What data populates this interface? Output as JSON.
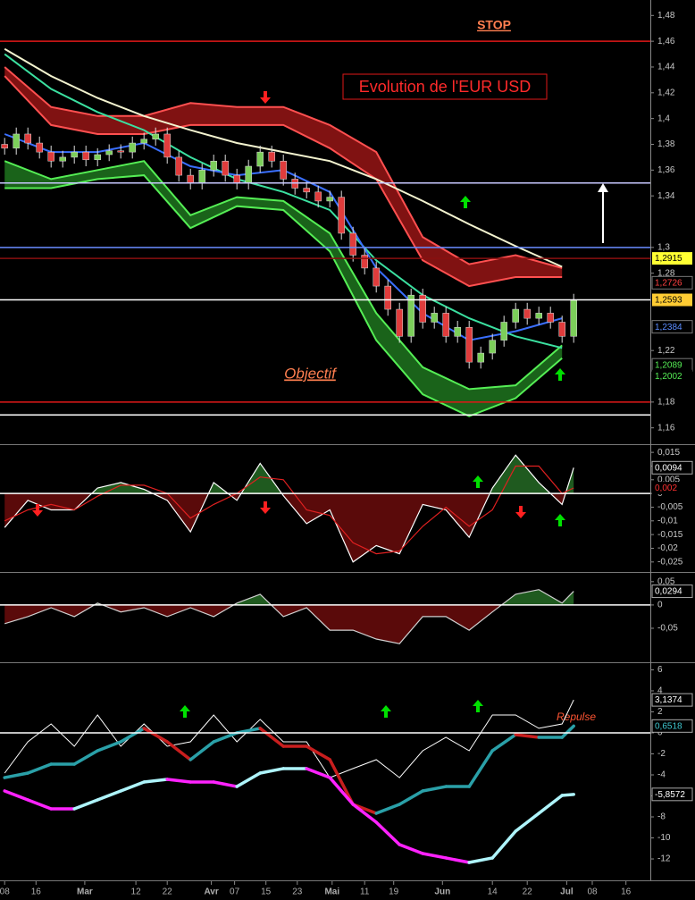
{
  "chart_data": [
    {
      "type": "candlestick",
      "title": "Evolution de l'EUR USD",
      "annotations": {
        "stop": "STOP",
        "objectif": "Objectif"
      },
      "xlim": [
        -0.4,
        55.6
      ],
      "ylim": [
        1.148,
        1.492
      ],
      "yticks": [
        {
          "value": 1.48,
          "label": "1,48"
        },
        {
          "value": 1.46,
          "label": "1,46"
        },
        {
          "value": 1.44,
          "label": "1,44"
        },
        {
          "value": 1.42,
          "label": "1,42"
        },
        {
          "value": 1.4,
          "label": "1,4"
        },
        {
          "value": 1.38,
          "label": "1,38"
        },
        {
          "value": 1.36,
          "label": "1,36"
        },
        {
          "value": 1.34,
          "label": "1,34"
        },
        {
          "value": 1.3,
          "label": "1,3"
        },
        {
          "value": 1.28,
          "label": "1,28"
        },
        {
          "value": 1.22,
          "label": "1,22"
        },
        {
          "value": 1.18,
          "label": "1,18"
        },
        {
          "value": 1.16,
          "label": "1,16"
        }
      ],
      "up_color": "#7ccf5a",
      "down_color": "#e03c3c",
      "wick_color": "#dddddd",
      "x": [
        0,
        1,
        2,
        3,
        4,
        5,
        6,
        7,
        8,
        9,
        10,
        11,
        12,
        13,
        14,
        15,
        16,
        17,
        18,
        19,
        20,
        21,
        22,
        23,
        24,
        25,
        26,
        27,
        28,
        29,
        30,
        31,
        32,
        33,
        34,
        35,
        36,
        37,
        38,
        39,
        40,
        41,
        42,
        43,
        44,
        45,
        46,
        47,
        48,
        49
      ],
      "open": [
        1.38,
        1.377,
        1.388,
        1.381,
        1.374,
        1.367,
        1.37,
        1.374,
        1.368,
        1.372,
        1.375,
        1.374,
        1.381,
        1.384,
        1.388,
        1.37,
        1.356,
        1.35,
        1.36,
        1.367,
        1.356,
        1.35,
        1.363,
        1.374,
        1.367,
        1.353,
        1.346,
        1.343,
        1.336,
        1.339,
        1.311,
        1.294,
        1.284,
        1.27,
        1.252,
        1.231,
        1.263,
        1.242,
        1.249,
        1.231,
        1.238,
        1.211,
        1.218,
        1.228,
        1.242,
        1.252,
        1.245,
        1.249,
        1.242,
        1.231
      ],
      "high": [
        1.385,
        1.393,
        1.393,
        1.386,
        1.379,
        1.375,
        1.379,
        1.379,
        1.377,
        1.38,
        1.38,
        1.386,
        1.389,
        1.393,
        1.393,
        1.375,
        1.361,
        1.365,
        1.372,
        1.372,
        1.361,
        1.368,
        1.379,
        1.379,
        1.372,
        1.358,
        1.351,
        1.348,
        1.344,
        1.344,
        1.316,
        1.299,
        1.289,
        1.275,
        1.257,
        1.268,
        1.268,
        1.254,
        1.254,
        1.243,
        1.243,
        1.223,
        1.233,
        1.247,
        1.257,
        1.257,
        1.254,
        1.254,
        1.247,
        1.264
      ],
      "low": [
        1.372,
        1.372,
        1.376,
        1.369,
        1.362,
        1.362,
        1.365,
        1.363,
        1.363,
        1.367,
        1.369,
        1.369,
        1.376,
        1.379,
        1.365,
        1.351,
        1.345,
        1.345,
        1.355,
        1.351,
        1.345,
        1.345,
        1.358,
        1.362,
        1.348,
        1.341,
        1.338,
        1.331,
        1.331,
        1.306,
        1.289,
        1.279,
        1.265,
        1.247,
        1.226,
        1.226,
        1.237,
        1.237,
        1.226,
        1.226,
        1.206,
        1.206,
        1.213,
        1.223,
        1.237,
        1.24,
        1.24,
        1.237,
        1.226,
        1.226
      ],
      "close": [
        1.377,
        1.388,
        1.381,
        1.374,
        1.367,
        1.37,
        1.374,
        1.368,
        1.372,
        1.375,
        1.374,
        1.381,
        1.384,
        1.388,
        1.37,
        1.356,
        1.35,
        1.36,
        1.367,
        1.356,
        1.35,
        1.363,
        1.374,
        1.367,
        1.353,
        1.346,
        1.343,
        1.336,
        1.339,
        1.311,
        1.294,
        1.284,
        1.27,
        1.252,
        1.231,
        1.263,
        1.242,
        1.249,
        1.231,
        1.238,
        1.211,
        1.218,
        1.228,
        1.242,
        1.252,
        1.245,
        1.249,
        1.242,
        1.231,
        1.259
      ],
      "bands": [
        {
          "color": "#8e1414",
          "edge_color": "#ff5050",
          "x": [
            0,
            4,
            8,
            12,
            16,
            20,
            24,
            28,
            32,
            36,
            40,
            44,
            48
          ],
          "upper": [
            1.44,
            1.409,
            1.402,
            1.402,
            1.412,
            1.409,
            1.409,
            1.395,
            1.374,
            1.308,
            1.287,
            1.294,
            1.284
          ],
          "lower": [
            1.433,
            1.395,
            1.388,
            1.388,
            1.395,
            1.395,
            1.395,
            1.377,
            1.353,
            1.29,
            1.27,
            1.277,
            1.277
          ]
        },
        {
          "color": "#1d6e1d",
          "edge_color": "#55ee55",
          "x": [
            0,
            4,
            8,
            12,
            16,
            20,
            24,
            28,
            32,
            36,
            40,
            44,
            48
          ],
          "upper": [
            1.367,
            1.353,
            1.36,
            1.367,
            1.325,
            1.339,
            1.336,
            1.311,
            1.249,
            1.207,
            1.19,
            1.193,
            1.224
          ],
          "lower": [
            1.346,
            1.346,
            1.353,
            1.356,
            1.315,
            1.332,
            1.329,
            1.297,
            1.228,
            1.186,
            1.169,
            1.183,
            1.214
          ]
        }
      ],
      "lines": [
        {
          "color": "#f3f3cf",
          "x": [
            0,
            4,
            8,
            12,
            16,
            20,
            24,
            28,
            32,
            36,
            40,
            44,
            48
          ],
          "values": [
            1.454,
            1.433,
            1.416,
            1.402,
            1.391,
            1.381,
            1.374,
            1.367,
            1.353,
            1.336,
            1.318,
            1.301,
            1.285
          ]
        },
        {
          "color": "#3be0a0",
          "x": [
            0,
            4,
            8,
            12,
            16,
            20,
            24,
            28,
            32,
            36,
            40,
            44,
            48
          ],
          "values": [
            1.45,
            1.423,
            1.405,
            1.391,
            1.37,
            1.353,
            1.343,
            1.329,
            1.29,
            1.263,
            1.245,
            1.231,
            1.222
          ]
        },
        {
          "color": "#3a6fff",
          "x": [
            0,
            4,
            8,
            12,
            16,
            20,
            24,
            28,
            32,
            36,
            40,
            44,
            48
          ],
          "values": [
            1.388,
            1.374,
            1.374,
            1.381,
            1.363,
            1.356,
            1.36,
            1.343,
            1.284,
            1.249,
            1.228,
            1.235,
            1.245
          ]
        }
      ],
      "levels": [
        {
          "value": 1.46,
          "color": "#e01818"
        },
        {
          "value": 1.35,
          "color": "#c8c8ff"
        },
        {
          "value": 1.3,
          "color": "#6a8cff"
        },
        {
          "value": 1.2915,
          "color": "#8a1010"
        },
        {
          "value": 1.2593,
          "color": "#ffffff"
        },
        {
          "value": 1.18,
          "color": "#e01818"
        },
        {
          "value": 1.17,
          "color": "#ffffff"
        }
      ],
      "price_labels": [
        {
          "value": 1.2915,
          "label": "1,2915",
          "color": "#000000",
          "background": "#ffff33"
        },
        {
          "value": 1.2726,
          "label": "1,2726",
          "color": "#ff4040",
          "border": "#777777"
        },
        {
          "value": 1.2593,
          "label": "1,2593",
          "color": "#000000",
          "background": "#ffcc33"
        },
        {
          "value": 1.2384,
          "label": "1,2384",
          "color": "#5b8cff",
          "border": "#777777"
        },
        {
          "value": 1.2089,
          "label": "1,2089",
          "color": "#55ee55",
          "border": "#777777"
        },
        {
          "value": 1.2002,
          "label": "1,2002",
          "color": "#55ee55"
        }
      ]
    },
    {
      "type": "area",
      "xlim": [
        -0.4,
        55.6
      ],
      "ylim": [
        -0.028,
        0.017
      ],
      "yticks": [
        {
          "value": 0.015,
          "label": "0,015"
        },
        {
          "value": 0.01,
          "label": "0,01"
        },
        {
          "value": 0.005,
          "label": "0,005"
        },
        0,
        {
          "value": -0.005,
          "label": "-0,005"
        },
        {
          "value": -0.01,
          "label": "-0,01"
        },
        {
          "value": -0.015,
          "label": "-0,015"
        },
        {
          "value": -0.02,
          "label": "-0,02"
        },
        {
          "value": -0.025,
          "label": "-0,025"
        }
      ],
      "x": [
        0,
        2,
        4,
        6,
        8,
        10,
        12,
        14,
        16,
        18,
        20,
        22,
        24,
        26,
        28,
        30,
        32,
        34,
        36,
        38,
        40,
        42,
        44,
        46,
        48,
        49
      ],
      "series": [
        {
          "color": "#ffffff",
          "fill_up": "#1f5a1f",
          "fill_down": "#5a0a0a",
          "values": [
            -0.0124,
            -0.0025,
            -0.006,
            -0.006,
            0.002,
            0.004,
            0.0015,
            -0.0025,
            -0.014,
            0.004,
            -0.0025,
            0.011,
            -0.0008,
            -0.011,
            -0.006,
            -0.025,
            -0.019,
            -0.022,
            -0.004,
            -0.006,
            -0.016,
            0.002,
            0.014,
            0.004,
            -0.004,
            0.0094
          ]
        },
        {
          "color": "#e02020",
          "values": [
            -0.01,
            -0.006,
            -0.004,
            -0.006,
            -0.001,
            0.003,
            0.003,
            0.0,
            -0.009,
            -0.004,
            0.0,
            0.006,
            0.005,
            -0.006,
            -0.008,
            -0.018,
            -0.022,
            -0.021,
            -0.012,
            -0.005,
            -0.012,
            -0.006,
            0.01,
            0.01,
            0.0,
            0.002
          ]
        }
      ],
      "levels": [
        {
          "value": 0,
          "color": "#ffffff"
        }
      ],
      "price_labels": [
        {
          "value": 0.0094,
          "label": "0,0094",
          "color": "#ffffff",
          "border": "#aaaaaa"
        },
        {
          "value": 0.002,
          "label": "0,002",
          "color": "#ff3030"
        }
      ]
    },
    {
      "type": "area",
      "xlim": [
        -0.4,
        55.6
      ],
      "ylim": [
        -0.121,
        0.065
      ],
      "yticks": [
        {
          "value": 0.05,
          "label": "0,05"
        },
        0,
        {
          "value": -0.05,
          "label": "-0,05"
        }
      ],
      "x": [
        0,
        2,
        4,
        6,
        8,
        10,
        12,
        14,
        16,
        18,
        20,
        22,
        24,
        26,
        28,
        30,
        32,
        34,
        36,
        38,
        40,
        42,
        44,
        46,
        48,
        49
      ],
      "series": [
        {
          "color": "#d0d0d0",
          "fill_up": "#1f5a1f",
          "fill_down": "#5a0a0a",
          "values": [
            -0.04,
            -0.025,
            -0.006,
            -0.025,
            0.004,
            -0.015,
            -0.006,
            -0.025,
            -0.006,
            -0.025,
            0.004,
            0.023,
            -0.025,
            -0.006,
            -0.054,
            -0.054,
            -0.073,
            -0.083,
            -0.025,
            -0.025,
            -0.054,
            -0.015,
            0.023,
            0.033,
            0.004,
            0.0294
          ]
        }
      ],
      "levels": [
        {
          "value": 0,
          "color": "#ffffff"
        }
      ],
      "price_labels": [
        {
          "value": 0.0294,
          "label": "0,0294",
          "color": "#ffffff",
          "border": "#aaaaaa"
        }
      ]
    },
    {
      "type": "line",
      "annotation": "Repulse",
      "xlim": [
        -0.4,
        55.6
      ],
      "ylim": [
        -14.04,
        6.55
      ],
      "yticks": [
        6,
        4,
        2,
        0,
        -2,
        -4,
        -6,
        -8,
        -10,
        -12
      ],
      "x": [
        0,
        2,
        4,
        6,
        8,
        10,
        12,
        14,
        16,
        18,
        20,
        22,
        24,
        26,
        28,
        30,
        32,
        34,
        36,
        38,
        40,
        42,
        44,
        46,
        48,
        49
      ],
      "series": [
        {
          "color": "#ffffff",
          "values": [
            -3.83,
            -0.85,
            0.85,
            -1.28,
            1.7,
            -1.28,
            0.85,
            -1.28,
            -0.85,
            1.7,
            -0.85,
            1.28,
            -0.85,
            -0.85,
            -4.26,
            -3.4,
            -2.55,
            -4.26,
            -1.7,
            -0.43,
            -1.7,
            1.7,
            1.7,
            0.43,
            0.85,
            3.1374
          ]
        },
        {
          "values": [
            -4.26,
            -3.83,
            -2.98,
            -2.98,
            -1.7,
            -0.85,
            0.43,
            -0.85,
            -2.55,
            -0.85,
            0,
            0.43,
            -1.28,
            -1.28,
            -2.55,
            -6.81,
            -7.66,
            -6.81,
            -5.53,
            -5.11,
            -5.11,
            -1.7,
            -0.17,
            -0.43,
            -0.43,
            0.6518
          ],
          "colors": [
            "#2aa0a8",
            "#2aa0a8",
            "#2aa0a8",
            "#2aa0a8",
            "#2aa0a8",
            "#2aa0a8",
            "#2aa0a8",
            "#c81e1e",
            "#c81e1e",
            "#2aa0a8",
            "#2aa0a8",
            "#2aa0a8",
            "#c81e1e",
            "#c81e1e",
            "#c81e1e",
            "#c81e1e",
            "#c81e1e",
            "#2aa0a8",
            "#2aa0a8",
            "#2aa0a8",
            "#2aa0a8",
            "#2aa0a8",
            "#2aa0a8",
            "#c81e1e",
            "#2aa0a8",
            "#2aa0a8"
          ]
        },
        {
          "values": [
            -5.53,
            -6.38,
            -7.23,
            -7.23,
            -6.38,
            -5.53,
            -4.68,
            -4.43,
            -4.68,
            -4.68,
            -5.11,
            -3.83,
            -3.4,
            -3.4,
            -4.26,
            -6.81,
            -8.51,
            -10.64,
            -11.49,
            -11.91,
            -12.34,
            -11.91,
            -9.36,
            -7.66,
            -5.96,
            -5.8572
          ],
          "colors": [
            "#ff22ff",
            "#ff22ff",
            "#ff22ff",
            "#ff22ff",
            "#aef4fb",
            "#aef4fb",
            "#aef4fb",
            "#aef4fb",
            "#ff22ff",
            "#ff22ff",
            "#ff22ff",
            "#aef4fb",
            "#aef4fb",
            "#aef4fb",
            "#ff22ff",
            "#ff22ff",
            "#ff22ff",
            "#ff22ff",
            "#ff22ff",
            "#ff22ff",
            "#ff22ff",
            "#aef4fb",
            "#aef4fb",
            "#aef4fb",
            "#aef4fb",
            "#aef4fb"
          ]
        }
      ],
      "levels": [
        {
          "value": 0,
          "color": "#ffffff"
        }
      ],
      "price_labels": [
        {
          "value": 3.1374,
          "label": "3,1374",
          "color": "#ffffff",
          "border": "#aaaaaa"
        },
        {
          "value": 0.6518,
          "label": "0,6518",
          "color": "#3fc8d0",
          "border": "#aaaaaa"
        },
        {
          "value": -5.8572,
          "label": "-5,8572",
          "color": "#ffffff",
          "border": "#aaaaaa"
        }
      ],
      "xticks": [
        {
          "value": 0,
          "label": "08"
        },
        {
          "value": 2.7,
          "label": "16"
        },
        {
          "value": 6.9,
          "label": "Mar"
        },
        {
          "value": 11.3,
          "label": "12"
        },
        {
          "value": 14,
          "label": "22"
        },
        {
          "value": 17.8,
          "label": "Avr"
        },
        {
          "value": 19.8,
          "label": "07"
        },
        {
          "value": 22.5,
          "label": "15"
        },
        {
          "value": 25.2,
          "label": "23"
        },
        {
          "value": 28.2,
          "label": "Mai"
        },
        {
          "value": 31,
          "label": "11"
        },
        {
          "value": 33.5,
          "label": "19"
        },
        {
          "value": 37.7,
          "label": "Jun"
        },
        {
          "value": 42,
          "label": "14"
        },
        {
          "value": 45,
          "label": "22"
        },
        {
          "value": 48.4,
          "label": "Jul"
        },
        {
          "value": 50.6,
          "label": "08"
        },
        {
          "value": 53.5,
          "label": "16"
        }
      ]
    }
  ]
}
